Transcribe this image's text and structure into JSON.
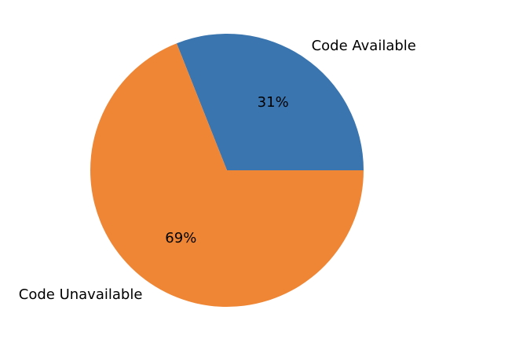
{
  "chart_data": {
    "type": "pie",
    "title": "",
    "slices": [
      {
        "label": "Code Available",
        "value": 31,
        "pct_label": "31%",
        "color": "#3a75af"
      },
      {
        "label": "Code Unavailable",
        "value": 69,
        "pct_label": "69%",
        "color": "#ef8636"
      }
    ],
    "start_angle_deg": 0,
    "direction": "counterclockwise"
  }
}
